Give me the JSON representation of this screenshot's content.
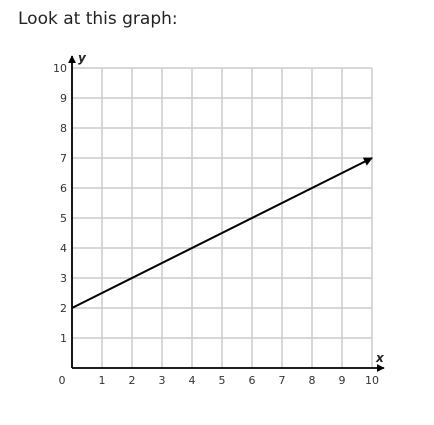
{
  "prompt": "Look at this graph:",
  "chart_data": {
    "type": "line",
    "xlabel": "x",
    "ylabel": "y",
    "xlim": [
      0,
      10
    ],
    "ylim": [
      0,
      10
    ],
    "x_ticks": [
      "1",
      "2",
      "3",
      "4",
      "5",
      "6",
      "7",
      "8",
      "9",
      "10"
    ],
    "y_ticks": [
      "1",
      "2",
      "3",
      "4",
      "5",
      "6",
      "7",
      "8",
      "9",
      "10"
    ],
    "origin_label": "0",
    "grid": true,
    "series": [
      {
        "points": [
          [
            0,
            2
          ],
          [
            10,
            7
          ]
        ],
        "end_arrow": true
      }
    ],
    "colors": {
      "grid": "#cccccc",
      "axis": "#000000",
      "line": "#000000"
    }
  }
}
